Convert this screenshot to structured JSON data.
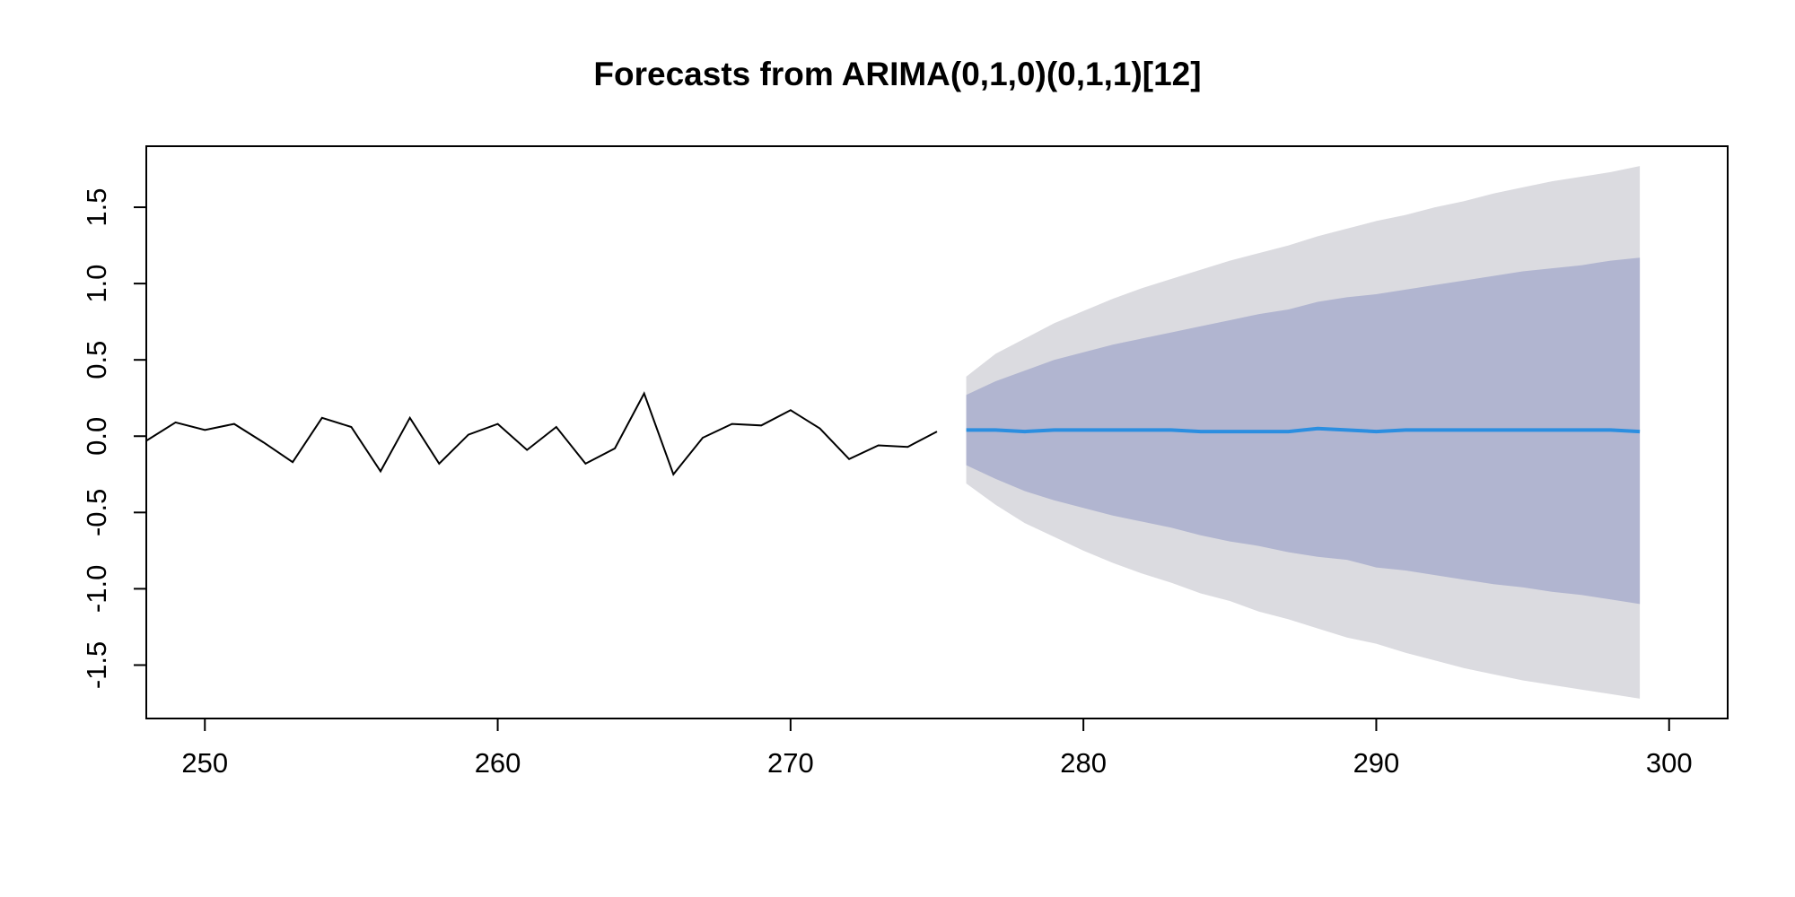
{
  "chart_data": {
    "type": "line",
    "title": "Forecasts from ARIMA(0,1,0)(0,1,1)[12]",
    "xlabel": "",
    "ylabel": "",
    "xlim": [
      248,
      302
    ],
    "ylim": [
      -1.85,
      1.9
    ],
    "x_ticks": [
      250,
      260,
      270,
      280,
      290,
      300
    ],
    "y_ticks": [
      -1.5,
      -1.0,
      -0.5,
      0.0,
      0.5,
      1.0,
      1.5
    ],
    "x_tick_labels": [
      "250",
      "260",
      "270",
      "280",
      "290",
      "300"
    ],
    "y_tick_labels": [
      "-1.5",
      "-1.0",
      "-0.5",
      "0.0",
      "0.5",
      "1.0",
      "1.5"
    ],
    "grid": false,
    "legend": "none",
    "colors": {
      "observed": "#000000",
      "forecast": "#2b8ee0",
      "band_80": "#b1b5d0",
      "band_95": "#dbdbe0"
    },
    "observed": {
      "x": [
        248,
        249,
        250,
        251,
        252,
        253,
        254,
        255,
        256,
        257,
        258,
        259,
        260,
        261,
        262,
        263,
        264,
        265,
        266,
        267,
        268,
        269,
        270,
        271,
        272,
        273,
        274,
        275
      ],
      "y": [
        -0.03,
        0.09,
        0.04,
        0.08,
        -0.04,
        -0.17,
        0.12,
        0.06,
        -0.23,
        0.12,
        -0.18,
        0.01,
        0.08,
        -0.09,
        0.06,
        -0.18,
        -0.08,
        0.28,
        -0.25,
        -0.01,
        0.08,
        0.07,
        0.17,
        0.05,
        -0.15,
        -0.06,
        -0.07,
        0.03
      ]
    },
    "forecast": {
      "x": [
        276,
        277,
        278,
        279,
        280,
        281,
        282,
        283,
        284,
        285,
        286,
        287,
        288,
        289,
        290,
        291,
        292,
        293,
        294,
        295,
        296,
        297,
        298,
        299
      ],
      "mean": [
        0.04,
        0.04,
        0.03,
        0.04,
        0.04,
        0.04,
        0.04,
        0.04,
        0.03,
        0.03,
        0.03,
        0.03,
        0.05,
        0.04,
        0.03,
        0.04,
        0.04,
        0.04,
        0.04,
        0.04,
        0.04,
        0.04,
        0.04,
        0.03
      ],
      "lo80": [
        -0.19,
        -0.28,
        -0.36,
        -0.42,
        -0.47,
        -0.52,
        -0.56,
        -0.6,
        -0.65,
        -0.69,
        -0.72,
        -0.76,
        -0.79,
        -0.81,
        -0.86,
        -0.88,
        -0.91,
        -0.94,
        -0.97,
        -0.99,
        -1.02,
        -1.04,
        -1.07,
        -1.1
      ],
      "hi80": [
        0.27,
        0.36,
        0.43,
        0.5,
        0.55,
        0.6,
        0.64,
        0.68,
        0.72,
        0.76,
        0.8,
        0.83,
        0.88,
        0.91,
        0.93,
        0.96,
        0.99,
        1.02,
        1.05,
        1.08,
        1.1,
        1.12,
        1.15,
        1.17
      ],
      "lo95": [
        -0.31,
        -0.45,
        -0.57,
        -0.66,
        -0.75,
        -0.83,
        -0.9,
        -0.96,
        -1.03,
        -1.08,
        -1.15,
        -1.2,
        -1.26,
        -1.32,
        -1.36,
        -1.42,
        -1.47,
        -1.52,
        -1.56,
        -1.6,
        -1.63,
        -1.66,
        -1.69,
        -1.72
      ],
      "hi95": [
        0.39,
        0.54,
        0.64,
        0.74,
        0.82,
        0.9,
        0.97,
        1.03,
        1.09,
        1.15,
        1.2,
        1.25,
        1.31,
        1.36,
        1.41,
        1.45,
        1.5,
        1.54,
        1.59,
        1.63,
        1.67,
        1.7,
        1.73,
        1.77
      ]
    }
  }
}
